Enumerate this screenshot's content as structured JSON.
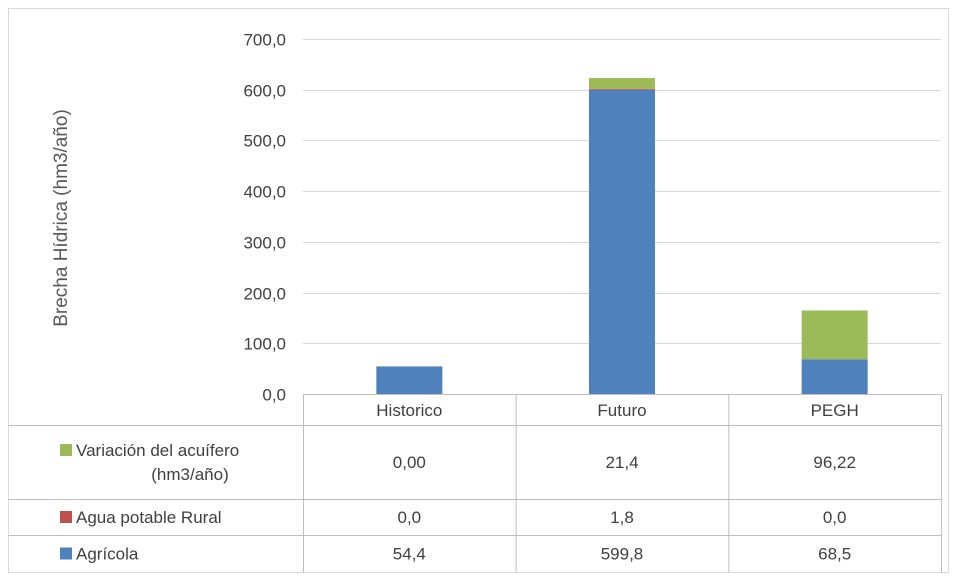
{
  "chart_data": {
    "type": "bar",
    "stacked": true,
    "ylabel": "Brecha Hídrica (hm3/año)",
    "ylim": [
      0,
      700
    ],
    "yticks": [
      "0,0",
      "100,0",
      "200,0",
      "300,0",
      "400,0",
      "500,0",
      "600,0",
      "700,0"
    ],
    "categories": [
      "Historico",
      "Futuro",
      "PEGH"
    ],
    "grid": true,
    "legend": "data-table",
    "series": [
      {
        "name": "Agrícola",
        "color": "#4f81bd",
        "values": [
          54.4,
          599.8,
          68.5
        ],
        "labels": [
          "54,4",
          "599,8",
          "68,5"
        ]
      },
      {
        "name": "Agua potable Rural",
        "color": "#c0504d",
        "values": [
          0.0,
          1.8,
          0.0
        ],
        "labels": [
          "0,0",
          "1,8",
          "0,0"
        ]
      },
      {
        "name": "Variación del acuífero (hm3/año)",
        "name_lines": [
          "Variación del acuífero",
          "(hm3/año)"
        ],
        "color": "#9bbb59",
        "values": [
          0.0,
          21.4,
          96.22
        ],
        "labels": [
          "0,00",
          "21,4",
          "96,22"
        ]
      }
    ]
  }
}
